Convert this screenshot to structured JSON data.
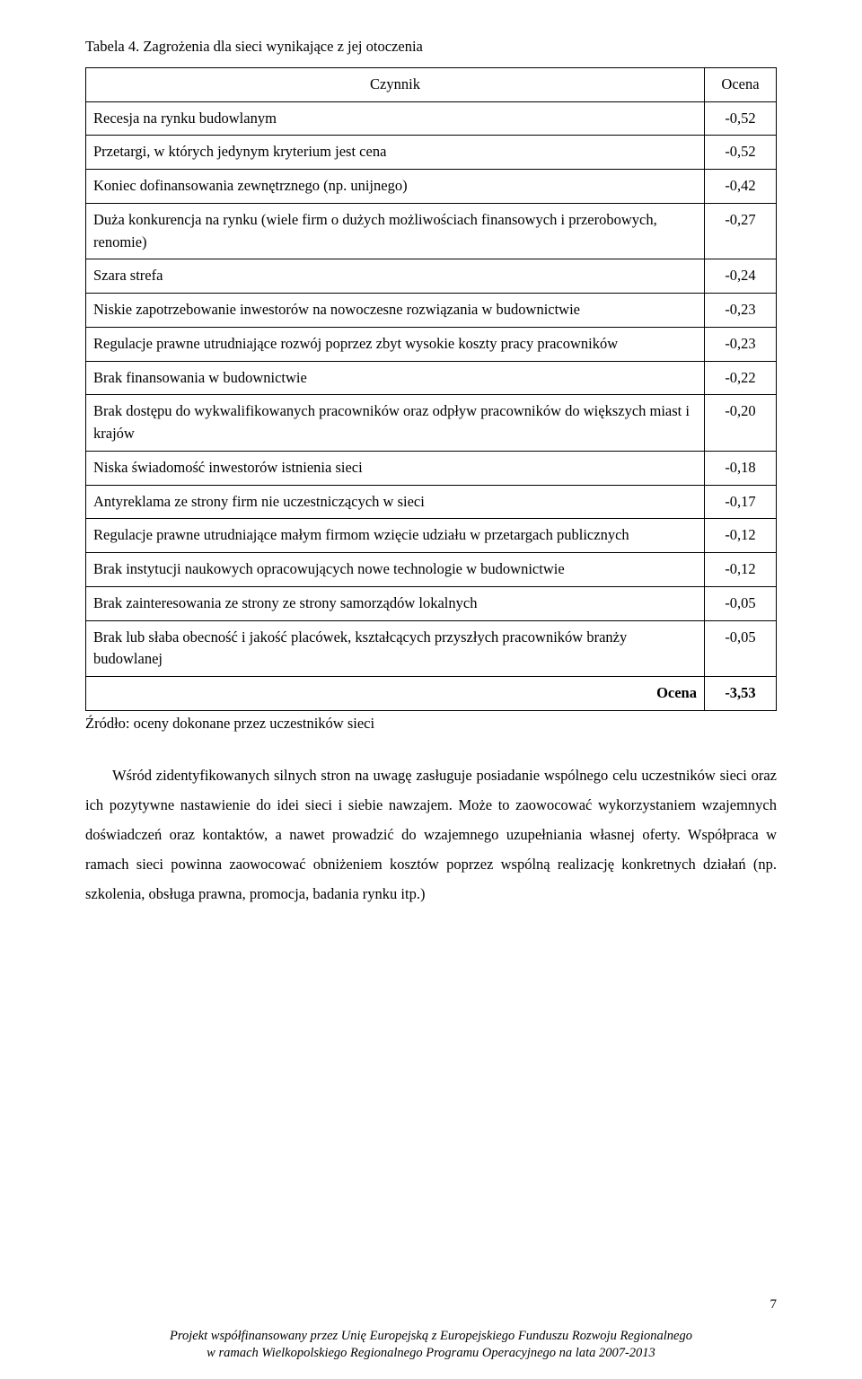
{
  "table": {
    "title": "Tabela 4. Zagrożenia dla sieci wynikające z jej otoczenia",
    "headers": {
      "factor": "Czynnik",
      "score": "Ocena"
    },
    "rows": [
      {
        "label": "Recesja na rynku budowlanym",
        "score": "-0,52"
      },
      {
        "label": "Przetargi, w których jedynym kryterium jest cena",
        "score": "-0,52"
      },
      {
        "label": "Koniec dofinansowania zewnętrznego (np. unijnego)",
        "score": "-0,42"
      },
      {
        "label": "Duża konkurencja na rynku (wiele firm o dużych możliwościach finansowych i przerobowych, renomie)",
        "score": "-0,27"
      },
      {
        "label": "Szara strefa",
        "score": "-0,24"
      },
      {
        "label": "Niskie zapotrzebowanie inwestorów na nowoczesne rozwiązania w budownictwie",
        "score": "-0,23"
      },
      {
        "label": "Regulacje prawne utrudniające rozwój poprzez zbyt wysokie koszty pracy pracowników",
        "score": "-0,23"
      },
      {
        "label": "Brak finansowania w budownictwie",
        "score": "-0,22"
      },
      {
        "label": "Brak dostępu do wykwalifikowanych pracowników oraz odpływ pracowników do większych miast i krajów",
        "score": "-0,20"
      },
      {
        "label": "Niska świadomość inwestorów istnienia sieci",
        "score": "-0,18"
      },
      {
        "label": "Antyreklama ze strony firm nie uczestniczących w sieci",
        "score": "-0,17"
      },
      {
        "label": "Regulacje prawne utrudniające małym firmom wzięcie udziału w przetargach publicznych",
        "score": "-0,12"
      },
      {
        "label": "Brak instytucji naukowych opracowujących nowe technologie w budownictwie",
        "score": "-0,12"
      },
      {
        "label": "Brak zainteresowania ze strony ze strony samorządów lokalnych",
        "score": "-0,05"
      },
      {
        "label": "Brak lub słaba obecność i jakość placówek, kształcących przyszłych pracowników branży budowlanej",
        "score": "-0,05"
      }
    ],
    "totalRow": {
      "label": "Ocena",
      "score": "-3,53"
    },
    "source": "Źródło: oceny dokonane przez uczestników sieci"
  },
  "paragraph": "Wśród zidentyfikowanych silnych stron na uwagę zasługuje posiadanie wspólnego celu uczestników sieci oraz ich pozytywne nastawienie do idei sieci i siebie nawzajem. Może to zaowocować wykorzystaniem wzajemnych doświadczeń oraz kontaktów, a nawet prowadzić do wzajemnego uzupełniania własnej oferty. Współpraca w ramach sieci powinna zaowocować obniżeniem kosztów poprzez wspólną realizację konkretnych działań (np. szkolenia, obsługa prawna, promocja, badania rynku itp.)",
  "pageNumber": "7",
  "footer": {
    "line1": "Projekt współfinansowany przez Unię Europejską z Europejskiego Funduszu Rozwoju Regionalnego",
    "line2": "w ramach Wielkopolskiego Regionalnego Programu Operacyjnego na lata 2007-2013"
  }
}
